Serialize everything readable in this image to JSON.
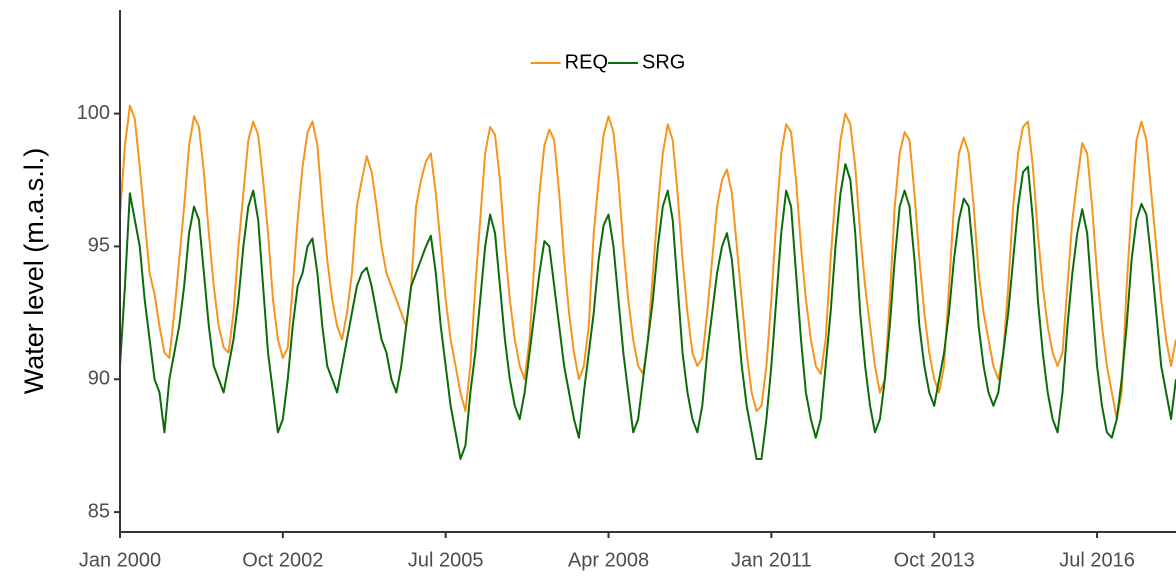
{
  "chart_data": {
    "type": "line",
    "ylabel": "Water level (m.a.s.l.)",
    "x": [
      "2000-01",
      "2000-02",
      "2000-03",
      "2000-04",
      "2000-05",
      "2000-06",
      "2000-07",
      "2000-08",
      "2000-09",
      "2000-10",
      "2000-11",
      "2000-12",
      "2001-01",
      "2001-02",
      "2001-03",
      "2001-04",
      "2001-05",
      "2001-06",
      "2001-07",
      "2001-08",
      "2001-09",
      "2001-10",
      "2001-11",
      "2001-12",
      "2002-01",
      "2002-02",
      "2002-03",
      "2002-04",
      "2002-05",
      "2002-06",
      "2002-07",
      "2002-08",
      "2002-09",
      "2002-10",
      "2002-11",
      "2002-12",
      "2003-01",
      "2003-02",
      "2003-03",
      "2003-04",
      "2003-05",
      "2003-06",
      "2003-07",
      "2003-08",
      "2003-09",
      "2003-10",
      "2003-11",
      "2003-12",
      "2004-01",
      "2004-02",
      "2004-03",
      "2004-04",
      "2004-05",
      "2004-06",
      "2004-07",
      "2004-08",
      "2004-09",
      "2004-10",
      "2004-11",
      "2004-12",
      "2005-01",
      "2005-02",
      "2005-03",
      "2005-04",
      "2005-05",
      "2005-06",
      "2005-07",
      "2005-08",
      "2005-09",
      "2005-10",
      "2005-11",
      "2005-12",
      "2006-01",
      "2006-02",
      "2006-03",
      "2006-04",
      "2006-05",
      "2006-06",
      "2006-07",
      "2006-08",
      "2006-09",
      "2006-10",
      "2006-11",
      "2006-12",
      "2007-01",
      "2007-02",
      "2007-03",
      "2007-04",
      "2007-05",
      "2007-06",
      "2007-07",
      "2007-08",
      "2007-09",
      "2007-10",
      "2007-11",
      "2007-12",
      "2008-01",
      "2008-02",
      "2008-03",
      "2008-04",
      "2008-05",
      "2008-06",
      "2008-07",
      "2008-08",
      "2008-09",
      "2008-10",
      "2008-11",
      "2008-12",
      "2009-01",
      "2009-02",
      "2009-03",
      "2009-04",
      "2009-05",
      "2009-06",
      "2009-07",
      "2009-08",
      "2009-09",
      "2009-10",
      "2009-11",
      "2009-12",
      "2010-01",
      "2010-02",
      "2010-03",
      "2010-04",
      "2010-05",
      "2010-06",
      "2010-07",
      "2010-08",
      "2010-09",
      "2010-10",
      "2010-11",
      "2010-12",
      "2011-01",
      "2011-02",
      "2011-03",
      "2011-04",
      "2011-05",
      "2011-06",
      "2011-07",
      "2011-08",
      "2011-09",
      "2011-10",
      "2011-11",
      "2011-12",
      "2012-01",
      "2012-02",
      "2012-03",
      "2012-04",
      "2012-05",
      "2012-06",
      "2012-07",
      "2012-08",
      "2012-09",
      "2012-10",
      "2012-11",
      "2012-12",
      "2013-01",
      "2013-02",
      "2013-03",
      "2013-04",
      "2013-05",
      "2013-06",
      "2013-07",
      "2013-08",
      "2013-09",
      "2013-10",
      "2013-11",
      "2013-12",
      "2014-01",
      "2014-02",
      "2014-03",
      "2014-04",
      "2014-05",
      "2014-06",
      "2014-07",
      "2014-08",
      "2014-09",
      "2014-10",
      "2014-11",
      "2014-12",
      "2015-01",
      "2015-02",
      "2015-03",
      "2015-04",
      "2015-05",
      "2015-06",
      "2015-07",
      "2015-08",
      "2015-09",
      "2015-10",
      "2015-11",
      "2015-12",
      "2016-01",
      "2016-02",
      "2016-03",
      "2016-04",
      "2016-05",
      "2016-06",
      "2016-07",
      "2016-08",
      "2016-09",
      "2016-10",
      "2016-11",
      "2016-12",
      "2017-01",
      "2017-02",
      "2017-03",
      "2017-04",
      "2017-05",
      "2017-06",
      "2017-07",
      "2017-08",
      "2017-09",
      "2017-10",
      "2017-11"
    ],
    "series": [
      {
        "name": "REQ",
        "color": "#f7941d",
        "values": [
          96.2,
          98.8,
          100.3,
          99.8,
          98.0,
          96.0,
          94.0,
          93.2,
          92.0,
          91.0,
          90.8,
          92.5,
          94.5,
          96.5,
          98.8,
          99.9,
          99.5,
          97.8,
          95.5,
          93.5,
          92.0,
          91.2,
          91.0,
          92.5,
          95.0,
          97.0,
          99.0,
          99.7,
          99.2,
          97.5,
          95.5,
          93.0,
          91.5,
          90.8,
          91.2,
          93.5,
          96.0,
          98.0,
          99.3,
          99.7,
          98.8,
          96.5,
          94.5,
          93.0,
          92.0,
          91.5,
          92.5,
          94.0,
          96.5,
          97.5,
          98.4,
          97.8,
          96.5,
          95.0,
          94.0,
          93.5,
          93.0,
          92.5,
          92.0,
          93.5,
          96.5,
          97.5,
          98.2,
          98.5,
          97.0,
          95.0,
          93.0,
          91.5,
          90.5,
          89.5,
          88.8,
          90.5,
          93.5,
          96.0,
          98.5,
          99.5,
          99.2,
          97.5,
          95.0,
          93.0,
          91.5,
          90.5,
          90.0,
          91.5,
          94.5,
          97.0,
          98.8,
          99.4,
          99.0,
          97.0,
          94.5,
          92.5,
          91.0,
          90.0,
          90.5,
          92.0,
          95.5,
          97.5,
          99.2,
          99.9,
          99.3,
          97.5,
          95.0,
          93.0,
          91.5,
          90.5,
          90.2,
          91.5,
          94.0,
          96.5,
          98.5,
          99.6,
          99.0,
          97.0,
          94.5,
          92.5,
          91.0,
          90.5,
          90.8,
          92.5,
          94.5,
          96.5,
          97.5,
          97.9,
          97.0,
          95.0,
          93.0,
          91.0,
          89.5,
          88.8,
          89.0,
          90.5,
          93.0,
          96.0,
          98.5,
          99.6,
          99.3,
          97.5,
          95.0,
          93.0,
          91.5,
          90.5,
          90.2,
          91.5,
          94.5,
          97.0,
          99.0,
          100.0,
          99.6,
          98.0,
          95.5,
          93.5,
          92.0,
          90.5,
          89.5,
          90.0,
          93.0,
          96.5,
          98.5,
          99.3,
          99.0,
          97.0,
          94.5,
          92.5,
          91.0,
          90.0,
          89.5,
          90.5,
          93.5,
          96.5,
          98.5,
          99.1,
          98.5,
          96.5,
          94.0,
          92.5,
          91.5,
          90.5,
          90.0,
          91.0,
          93.5,
          96.5,
          98.5,
          99.5,
          99.7,
          98.0,
          95.5,
          93.5,
          92.0,
          91.0,
          90.5,
          91.0,
          93.5,
          96.0,
          97.5,
          98.9,
          98.5,
          96.5,
          94.0,
          92.0,
          90.5,
          89.5,
          88.5,
          89.5,
          93.5,
          96.5,
          99.0,
          99.7,
          99.0,
          97.0,
          95.0,
          93.0,
          91.5,
          90.5,
          91.5
        ]
      },
      {
        "name": "SRG",
        "color": "#0b6b0b",
        "values": [
          90.5,
          93.5,
          97.0,
          96.0,
          95.0,
          93.0,
          91.5,
          90.0,
          89.5,
          88.0,
          90.0,
          91.0,
          92.0,
          93.5,
          95.5,
          96.5,
          96.0,
          94.0,
          92.0,
          90.5,
          90.0,
          89.5,
          90.5,
          91.5,
          93.0,
          95.0,
          96.5,
          97.1,
          96.0,
          93.5,
          91.0,
          89.5,
          88.0,
          88.5,
          90.0,
          92.0,
          93.5,
          94.0,
          95.0,
          95.3,
          94.0,
          92.0,
          90.5,
          90.0,
          89.5,
          90.5,
          91.5,
          92.5,
          93.5,
          94.0,
          94.2,
          93.5,
          92.5,
          91.5,
          91.0,
          90.0,
          89.5,
          90.5,
          92.0,
          93.5,
          94.0,
          94.5,
          95.0,
          95.4,
          94.0,
          92.0,
          90.5,
          89.0,
          88.0,
          87.0,
          87.5,
          89.5,
          91.0,
          93.0,
          95.0,
          96.2,
          95.5,
          93.5,
          91.5,
          90.0,
          89.0,
          88.5,
          89.5,
          91.0,
          92.5,
          94.0,
          95.2,
          95.0,
          93.5,
          92.0,
          90.5,
          89.5,
          88.5,
          87.8,
          89.5,
          91.0,
          92.5,
          94.5,
          95.8,
          96.2,
          95.0,
          93.0,
          91.0,
          89.5,
          88.0,
          88.5,
          90.0,
          91.5,
          93.0,
          95.0,
          96.5,
          97.1,
          96.0,
          93.5,
          91.0,
          89.5,
          88.5,
          88.0,
          89.0,
          91.0,
          92.5,
          94.0,
          95.0,
          95.5,
          94.5,
          92.5,
          90.5,
          89.0,
          88.0,
          87.0,
          87.0,
          88.5,
          90.5,
          93.0,
          95.5,
          97.1,
          96.5,
          94.0,
          91.5,
          89.5,
          88.5,
          87.8,
          88.5,
          90.5,
          92.5,
          95.0,
          97.0,
          98.1,
          97.5,
          95.5,
          92.5,
          90.5,
          89.0,
          88.0,
          88.5,
          90.0,
          92.0,
          94.5,
          96.5,
          97.1,
          96.5,
          94.5,
          92.0,
          90.5,
          89.5,
          89.0,
          90.0,
          91.0,
          92.5,
          94.5,
          96.0,
          96.8,
          96.5,
          94.5,
          92.0,
          90.5,
          89.5,
          89.0,
          89.5,
          91.0,
          92.5,
          94.5,
          96.5,
          97.8,
          98.0,
          96.0,
          93.0,
          91.0,
          89.5,
          88.5,
          88.0,
          89.5,
          92.0,
          94.0,
          95.5,
          96.4,
          95.5,
          93.0,
          90.5,
          89.0,
          88.0,
          87.8,
          88.5,
          90.0,
          92.0,
          94.5,
          96.0,
          96.6,
          96.2,
          94.5,
          92.5,
          90.5,
          89.5,
          88.5,
          90.0
        ]
      }
    ],
    "xlim": [
      "2000-01",
      "2017-11"
    ],
    "xticks": [
      {
        "value": "2000-01",
        "label": "Jan 2000"
      },
      {
        "value": "2002-10",
        "label": "Oct 2002"
      },
      {
        "value": "2005-07",
        "label": "Jul 2005"
      },
      {
        "value": "2008-04",
        "label": "Apr 2008"
      },
      {
        "value": "2011-01",
        "label": "Jan 2011"
      },
      {
        "value": "2013-10",
        "label": "Oct 2013"
      },
      {
        "value": "2016-07",
        "label": "Jul 2016"
      }
    ],
    "ylim": [
      84.25,
      103.9
    ],
    "yticks": [
      85,
      90,
      95,
      100
    ],
    "legend": "top"
  }
}
